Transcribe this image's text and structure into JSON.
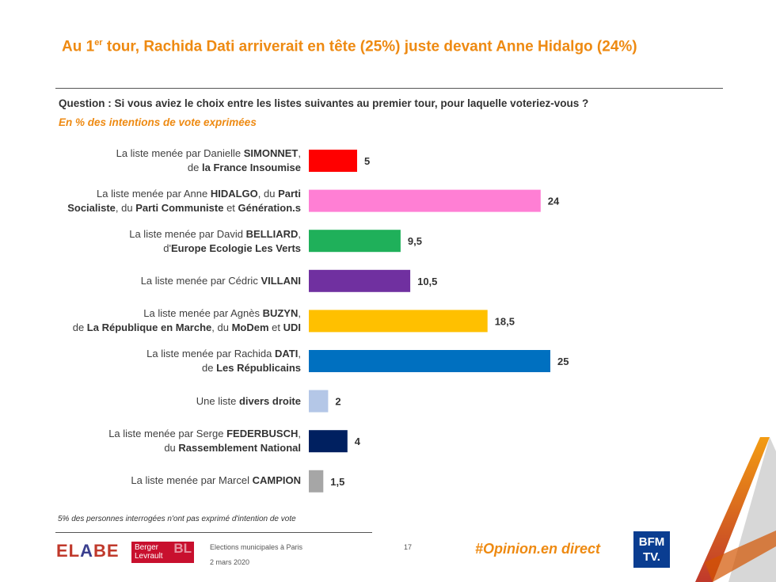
{
  "header": {
    "title_before_sup": "Au 1",
    "title_sup": "er",
    "title_after_sup": " tour, Rachida Dati arriverait en tête (25%) juste devant Anne Hidalgo (24%)",
    "question": "Question : Si vous aviez le choix entre les listes suivantes au premier tour, pour laquelle voteriez-vous ?",
    "unit": "En % des intentions de vote exprimées"
  },
  "chart_data": {
    "type": "bar",
    "orientation": "horizontal",
    "xlim": [
      0,
      25
    ],
    "grid": false,
    "categories": [
      "La liste menée par Danielle SIMONNET, de la France Insoumise",
      "La liste menée par Anne HIDALGO, du Parti Socialiste, du Parti Communiste et Génération.s",
      "La liste menée par David BELLIARD, d'Europe Ecologie Les Verts",
      "La liste menée par Cédric VILLANI",
      "La liste menée par Agnès BUZYN, de La République en Marche, du MoDem et UDI",
      "La liste menée par Rachida DATI, de Les Républicains",
      "Une liste divers droite",
      "La liste menée par Serge FEDERBUSCH, du Rassemblement National",
      "La liste menée par Marcel CAMPION"
    ],
    "values": [
      5,
      24,
      9.5,
      10.5,
      18.5,
      25,
      2,
      4,
      1.5
    ],
    "value_labels": [
      "5",
      "24",
      "9,5",
      "10,5",
      "18,5",
      "25",
      "2",
      "4",
      "1,5"
    ],
    "colors": [
      "#ff0000",
      "#ff7fd4",
      "#1fb05a",
      "#7030a0",
      "#ffc000",
      "#0070c0",
      "#b4c7e7",
      "#002060",
      "#a6a6a6"
    ]
  },
  "footer": {
    "note": "5% des personnes interrogées n'ont pas exprimé d'intention de vote",
    "elabe_1": "EL",
    "elabe_2": "A",
    "elabe_3": "BE",
    "partner_line1": "Berger",
    "partner_line2": "Levrault",
    "partner_mark": "BL",
    "source": "Elections municipales à Paris",
    "date": "2 mars 2020",
    "page": "17",
    "hashtag": "#Opinion.en direct",
    "broadcaster_line1": "BFM",
    "broadcaster_line2": "TV."
  }
}
